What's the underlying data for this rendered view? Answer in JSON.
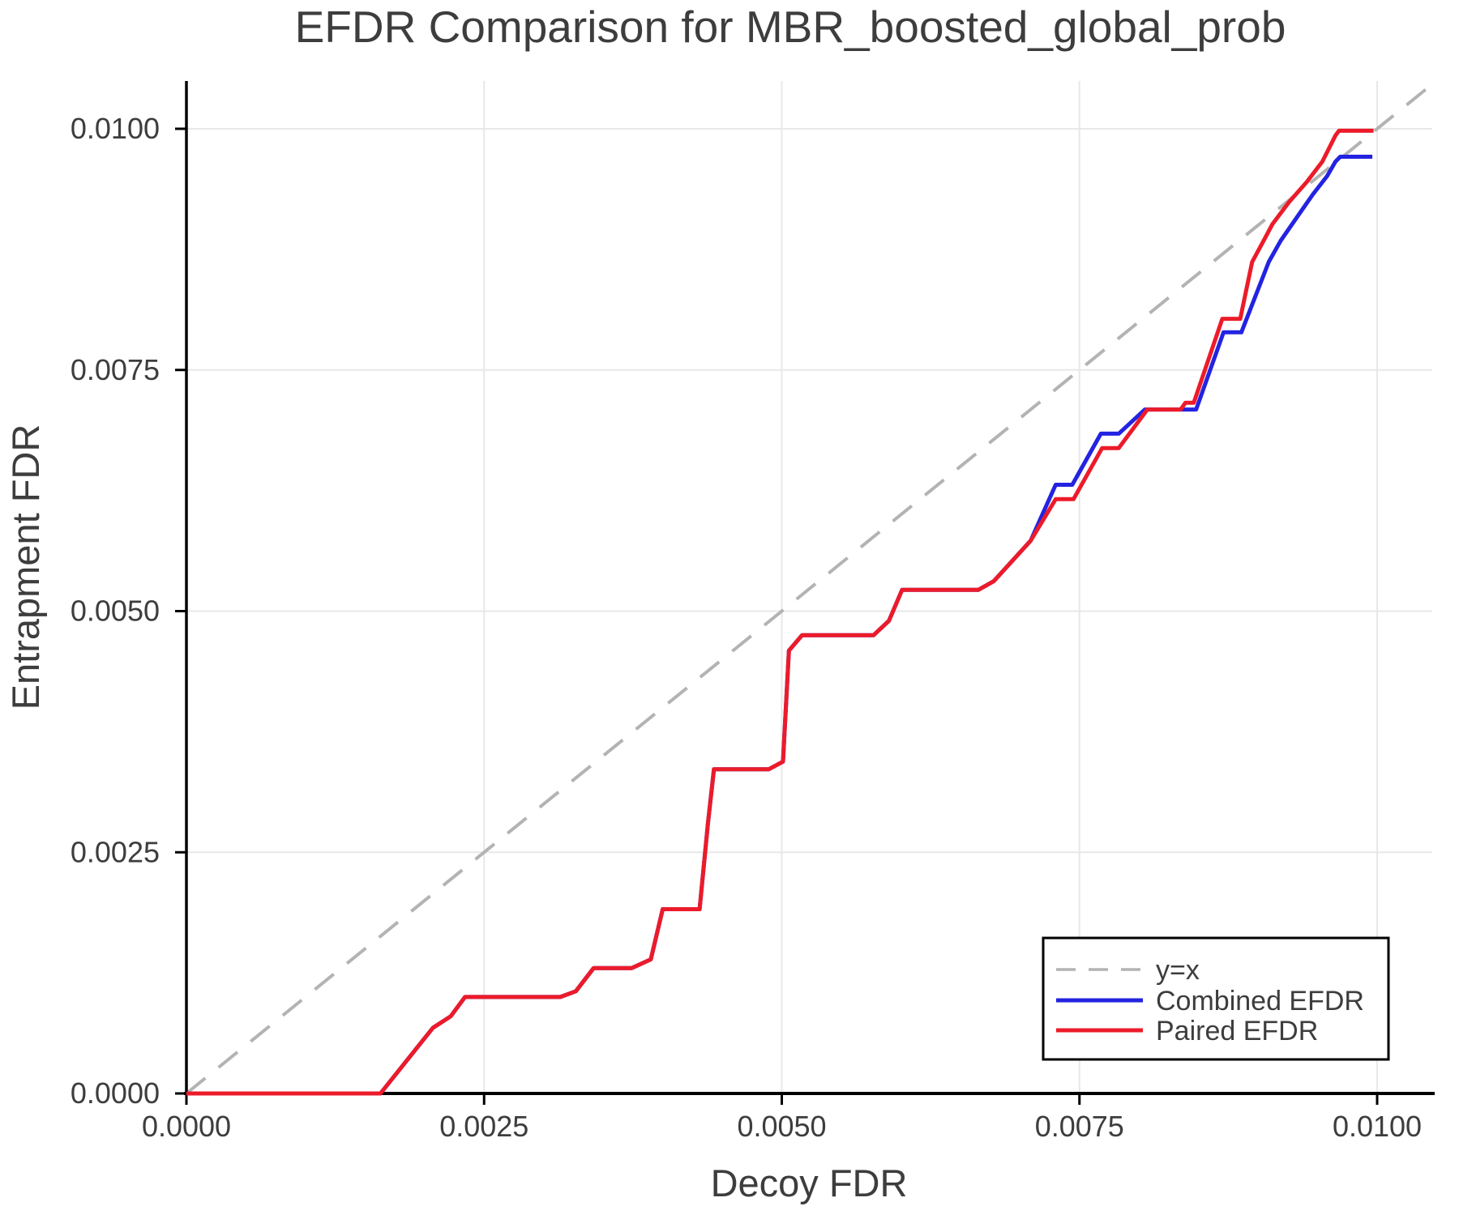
{
  "figure": {
    "background": "#ffffff",
    "text_color": "#3d3d3d",
    "grid_color": "#e8e8e8",
    "spine_color": "#000000"
  },
  "chart_data": {
    "type": "line",
    "title": "EFDR Comparison for MBR_boosted_global_prob",
    "xlabel": "Decoy FDR",
    "ylabel": "Entrapment FDR",
    "xlim": [
      0.0,
      0.010463
    ],
    "ylim": [
      0.0,
      0.010495
    ],
    "grid": true,
    "xticks": [
      0.0,
      0.0025,
      0.005,
      0.0075,
      0.01
    ],
    "xtick_labels": [
      "0.0000",
      "0.0025",
      "0.0050",
      "0.0075",
      "0.0100"
    ],
    "yticks": [
      0.0,
      0.0025,
      0.005,
      0.0075,
      0.01
    ],
    "ytick_labels": [
      "0.0000",
      "0.0025",
      "0.0050",
      "0.0075",
      "0.0100"
    ],
    "legend": {
      "position": "bottom-right",
      "entries": [
        {
          "label": "y=x",
          "color": "#b3b3b3",
          "dashed": true
        },
        {
          "label": "Combined EFDR",
          "color": "#2323e1",
          "dashed": false
        },
        {
          "label": "Paired EFDR",
          "color": "#ec1b2a",
          "dashed": false
        }
      ]
    },
    "series": [
      {
        "name": "y=x",
        "color": "#b3b3b3",
        "dashed": true,
        "width": 4,
        "points": [
          [
            0.0,
            0.0
          ],
          [
            0.010463,
            0.010463
          ]
        ]
      },
      {
        "name": "Combined EFDR",
        "color": "#2323e1",
        "dashed": false,
        "width": 5,
        "points": [
          [
            0.0,
            0.0
          ],
          [
            0.00163,
            0.0
          ],
          [
            0.00207,
            0.00068
          ],
          [
            0.00222,
            0.0008
          ],
          [
            0.00234,
            0.001
          ],
          [
            0.00314,
            0.001
          ],
          [
            0.00327,
            0.00106
          ],
          [
            0.00342,
            0.0013
          ],
          [
            0.00374,
            0.0013
          ],
          [
            0.0039,
            0.00139
          ],
          [
            0.004,
            0.00191
          ],
          [
            0.00431,
            0.00191
          ],
          [
            0.00438,
            0.0028
          ],
          [
            0.00443,
            0.00336
          ],
          [
            0.00489,
            0.00336
          ],
          [
            0.00501,
            0.00344
          ],
          [
            0.00506,
            0.00459
          ],
          [
            0.00517,
            0.00475
          ],
          [
            0.00577,
            0.00475
          ],
          [
            0.0059,
            0.0049
          ],
          [
            0.00601,
            0.00522
          ],
          [
            0.00665,
            0.00522
          ],
          [
            0.00678,
            0.00531
          ],
          [
            0.00709,
            0.00573
          ],
          [
            0.0073,
            0.00631
          ],
          [
            0.00744,
            0.00631
          ],
          [
            0.00768,
            0.00684
          ],
          [
            0.00783,
            0.00684
          ],
          [
            0.00805,
            0.00709
          ],
          [
            0.00848,
            0.00709
          ],
          [
            0.00871,
            0.00789
          ],
          [
            0.00886,
            0.00789
          ],
          [
            0.00909,
            0.00862
          ],
          [
            0.00919,
            0.00884
          ],
          [
            0.00933,
            0.00909
          ],
          [
            0.00946,
            0.00932
          ],
          [
            0.00958,
            0.00951
          ],
          [
            0.00965,
            0.00966
          ],
          [
            0.00969,
            0.00971
          ],
          [
            0.00996,
            0.00971
          ]
        ]
      },
      {
        "name": "Paired EFDR",
        "color": "#ec1b2a",
        "dashed": false,
        "width": 5,
        "points": [
          [
            0.0,
            0.0
          ],
          [
            0.00163,
            0.0
          ],
          [
            0.00207,
            0.00068
          ],
          [
            0.00222,
            0.0008
          ],
          [
            0.00234,
            0.001
          ],
          [
            0.00314,
            0.001
          ],
          [
            0.00327,
            0.00106
          ],
          [
            0.00342,
            0.0013
          ],
          [
            0.00374,
            0.0013
          ],
          [
            0.0039,
            0.00139
          ],
          [
            0.004,
            0.00191
          ],
          [
            0.00431,
            0.00191
          ],
          [
            0.00438,
            0.0028
          ],
          [
            0.00443,
            0.00336
          ],
          [
            0.00489,
            0.00336
          ],
          [
            0.00501,
            0.00344
          ],
          [
            0.00506,
            0.00459
          ],
          [
            0.00517,
            0.00475
          ],
          [
            0.00577,
            0.00475
          ],
          [
            0.0059,
            0.0049
          ],
          [
            0.00601,
            0.00522
          ],
          [
            0.00665,
            0.00522
          ],
          [
            0.00678,
            0.00531
          ],
          [
            0.00709,
            0.00573
          ],
          [
            0.0073,
            0.00616
          ],
          [
            0.00745,
            0.00616
          ],
          [
            0.00769,
            0.00669
          ],
          [
            0.00783,
            0.00669
          ],
          [
            0.00807,
            0.00709
          ],
          [
            0.00835,
            0.00709
          ],
          [
            0.00839,
            0.00716
          ],
          [
            0.00846,
            0.00716
          ],
          [
            0.0087,
            0.00803
          ],
          [
            0.00885,
            0.00803
          ],
          [
            0.00895,
            0.00862
          ],
          [
            0.00906,
            0.00887
          ],
          [
            0.00912,
            0.00901
          ],
          [
            0.00926,
            0.00924
          ],
          [
            0.00941,
            0.00945
          ],
          [
            0.00954,
            0.00966
          ],
          [
            0.00965,
            0.00993
          ],
          [
            0.00968,
            0.00998
          ],
          [
            0.00997,
            0.00998
          ]
        ]
      }
    ]
  }
}
